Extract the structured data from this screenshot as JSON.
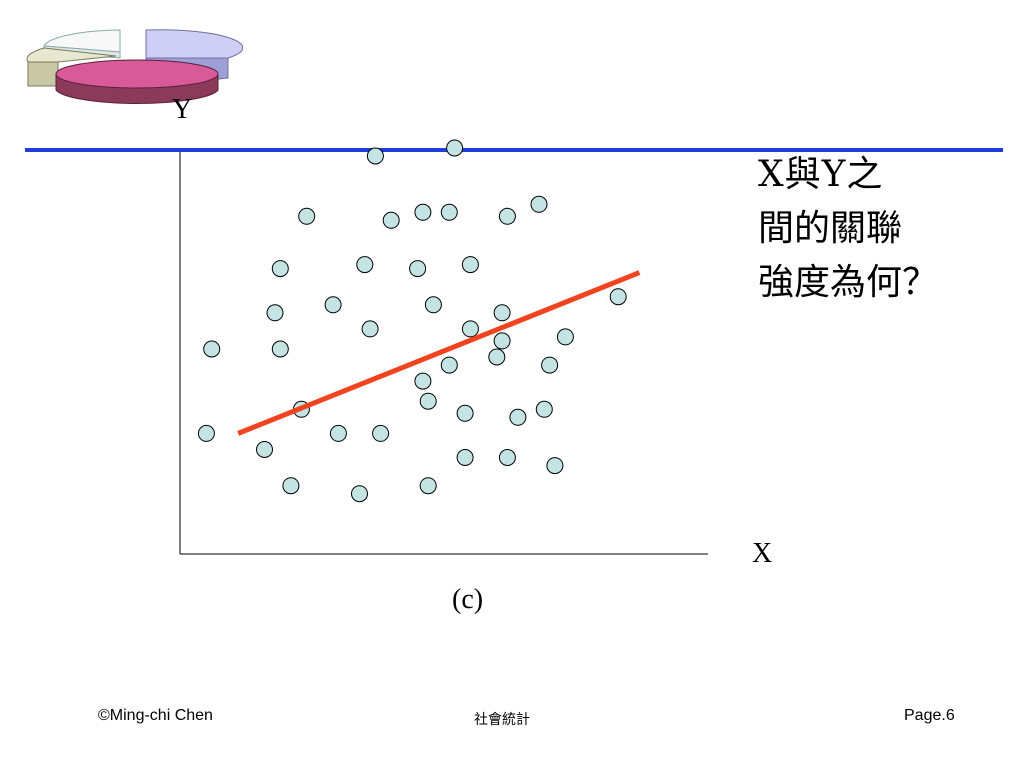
{
  "slide": {
    "question_lines": [
      "X與Y之",
      "間的關聯",
      "強度為何？"
    ],
    "caption": "(c)",
    "footer": {
      "copyright": "©Ming-chi Chen",
      "course": "社會統計",
      "page": "Page.6"
    },
    "logo_icon": "pie-chart-logo-icon",
    "title_rule_color": "#1f3fdc"
  },
  "chart_data": {
    "type": "scatter",
    "xlabel": "X",
    "ylabel": "Y",
    "xlim": [
      0,
      10
    ],
    "ylim": [
      0,
      10
    ],
    "grid": false,
    "point_color": "#c4e4e4",
    "points": [
      {
        "x": 3.7,
        "y": 9.9
      },
      {
        "x": 5.2,
        "y": 10.1
      },
      {
        "x": 4.0,
        "y": 8.3
      },
      {
        "x": 4.6,
        "y": 8.5
      },
      {
        "x": 5.1,
        "y": 8.5
      },
      {
        "x": 6.2,
        "y": 8.4
      },
      {
        "x": 6.8,
        "y": 8.7
      },
      {
        "x": 2.4,
        "y": 8.4
      },
      {
        "x": 1.9,
        "y": 7.1
      },
      {
        "x": 3.5,
        "y": 7.2
      },
      {
        "x": 4.5,
        "y": 7.1
      },
      {
        "x": 5.5,
        "y": 7.2
      },
      {
        "x": 1.8,
        "y": 6.0
      },
      {
        "x": 2.9,
        "y": 6.2
      },
      {
        "x": 4.8,
        "y": 6.2
      },
      {
        "x": 6.1,
        "y": 6.0
      },
      {
        "x": 8.3,
        "y": 6.4
      },
      {
        "x": 0.6,
        "y": 5.1
      },
      {
        "x": 1.9,
        "y": 5.1
      },
      {
        "x": 3.6,
        "y": 5.6
      },
      {
        "x": 5.5,
        "y": 5.6
      },
      {
        "x": 4.6,
        "y": 4.3
      },
      {
        "x": 5.1,
        "y": 4.7
      },
      {
        "x": 6.0,
        "y": 4.9
      },
      {
        "x": 7.0,
        "y": 4.7
      },
      {
        "x": 6.1,
        "y": 5.3
      },
      {
        "x": 7.3,
        "y": 5.4
      },
      {
        "x": 2.3,
        "y": 3.6
      },
      {
        "x": 4.7,
        "y": 3.8
      },
      {
        "x": 5.4,
        "y": 3.5
      },
      {
        "x": 6.4,
        "y": 3.4
      },
      {
        "x": 6.9,
        "y": 3.6
      },
      {
        "x": 0.5,
        "y": 3.0
      },
      {
        "x": 1.6,
        "y": 2.6
      },
      {
        "x": 3.0,
        "y": 3.0
      },
      {
        "x": 3.8,
        "y": 3.0
      },
      {
        "x": 5.4,
        "y": 2.4
      },
      {
        "x": 6.2,
        "y": 2.4
      },
      {
        "x": 7.1,
        "y": 2.2
      },
      {
        "x": 2.1,
        "y": 1.7
      },
      {
        "x": 3.4,
        "y": 1.5
      },
      {
        "x": 4.7,
        "y": 1.7
      }
    ],
    "trend_line": {
      "color": "#f0441e",
      "from": {
        "x": 1.1,
        "y": 3.0
      },
      "to": {
        "x": 8.7,
        "y": 7.0
      }
    }
  }
}
